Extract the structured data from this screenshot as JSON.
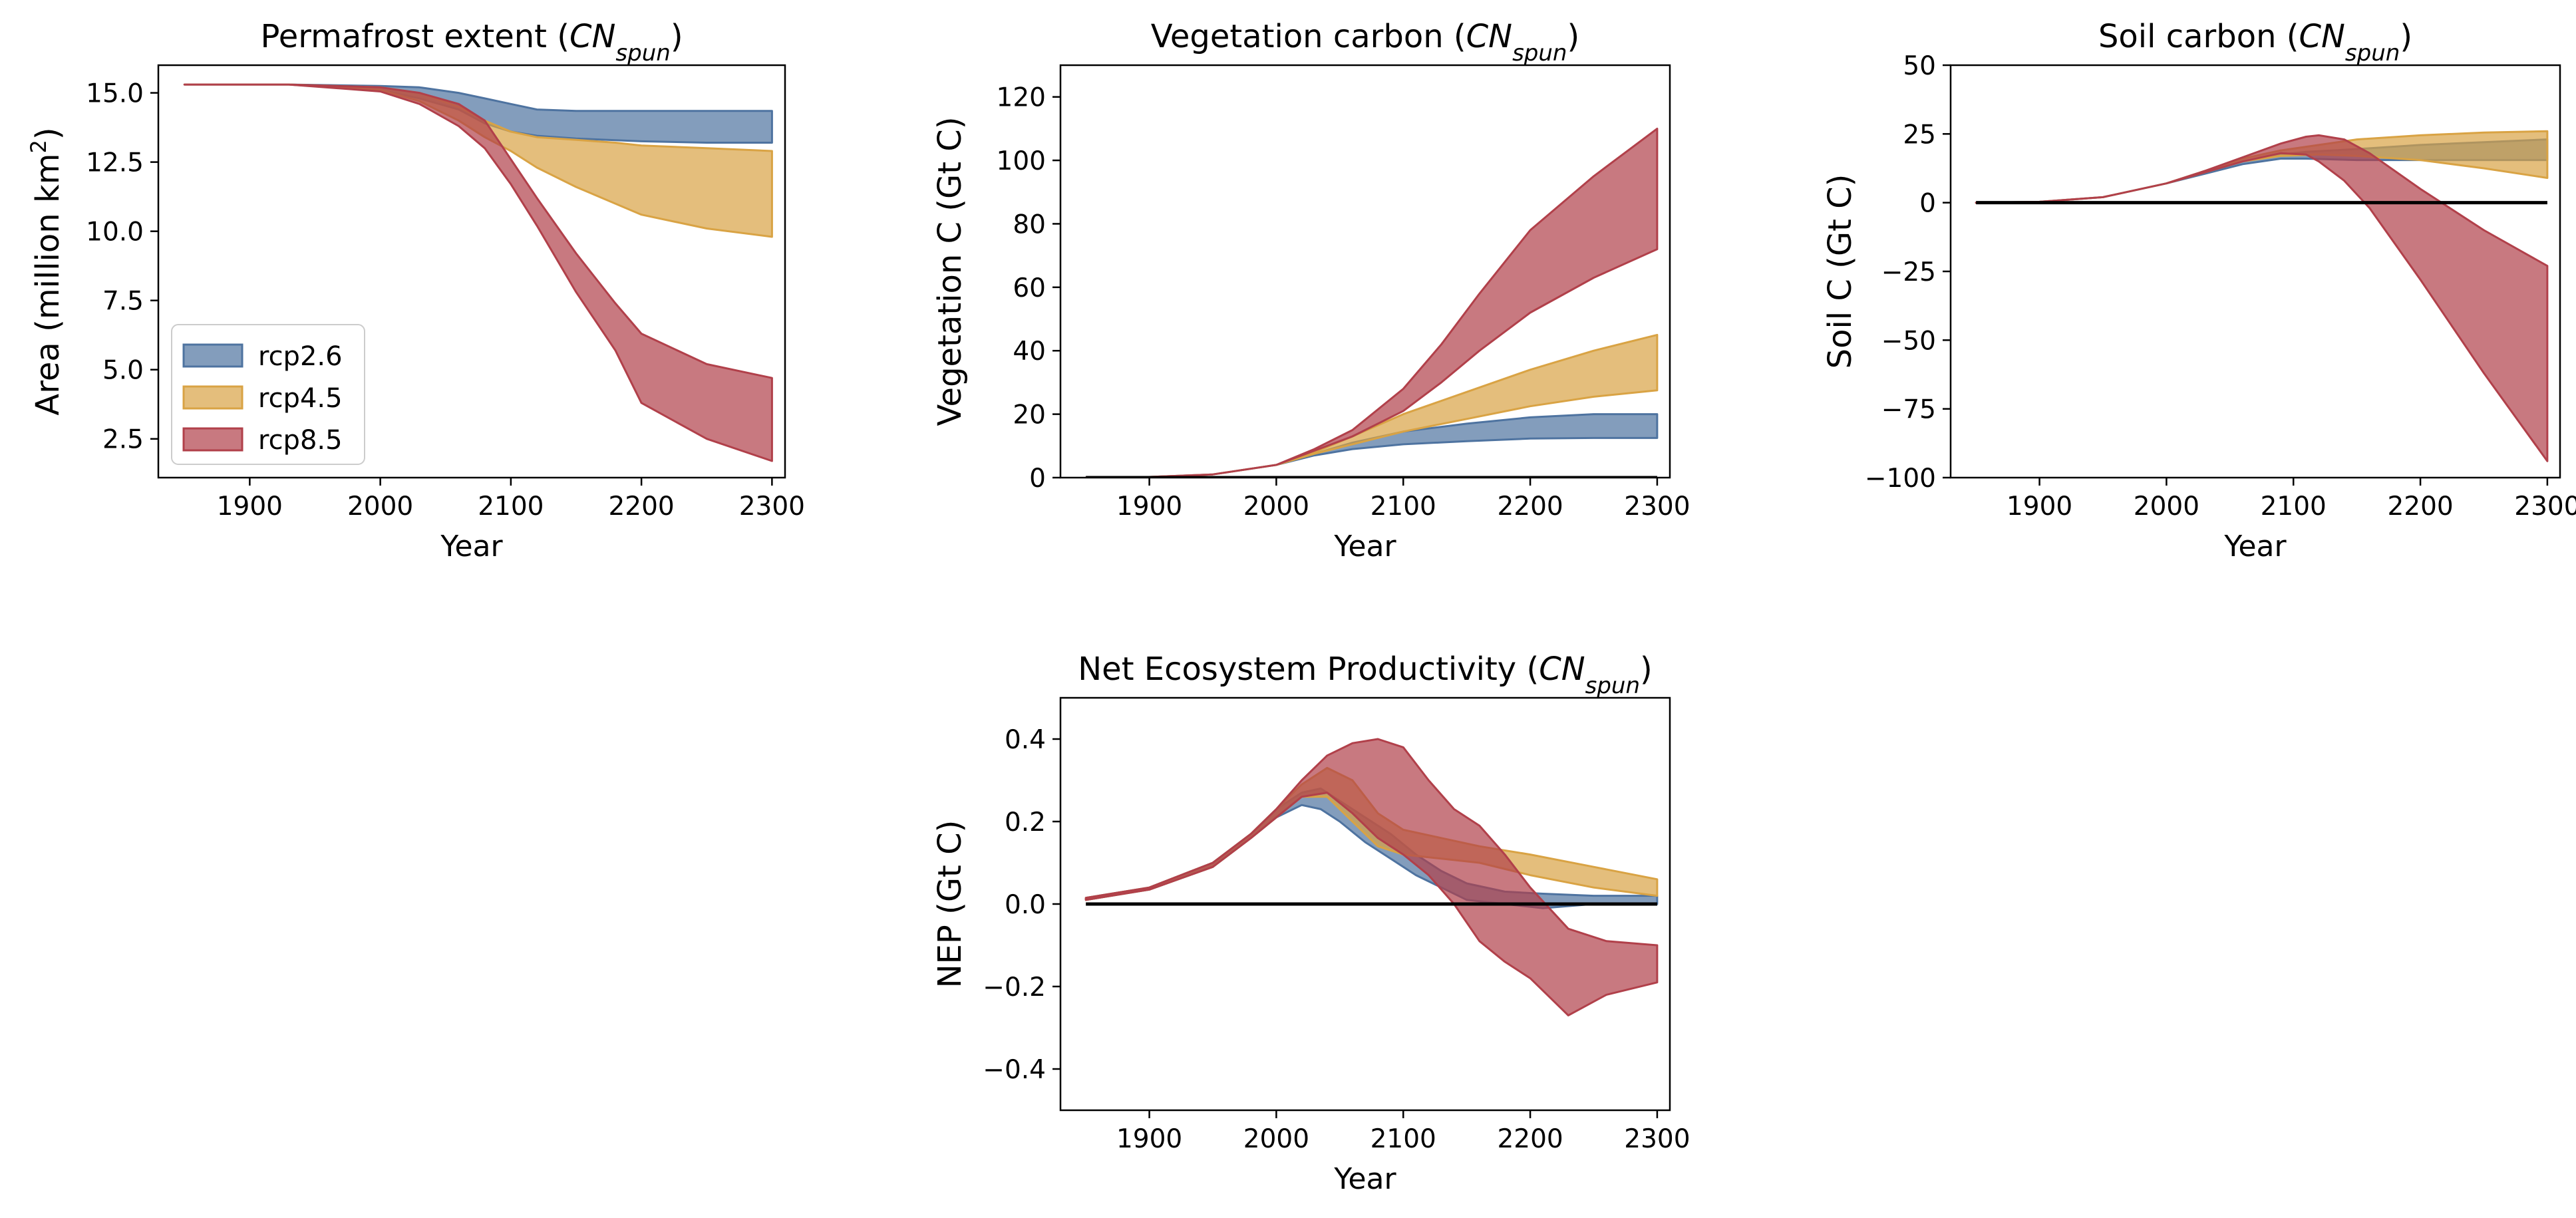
{
  "colors": {
    "rcp2.6": "#4e73a0",
    "rcp4.5": "#d9a344",
    "rcp8.5": "#b1404a",
    "zero_line": "#000000"
  },
  "legend": [
    "rcp2.6",
    "rcp4.5",
    "rcp8.5"
  ],
  "chart_data": [
    {
      "id": "permafrost",
      "type": "area",
      "title_main": "Permafrost extent (",
      "title_sym": "CN",
      "title_sub": "spun",
      "title_close": ")",
      "xlabel": "Year",
      "ylabel_main": "Area (million km",
      "ylabel_sup": "2",
      "ylabel_close": ")",
      "xlim": [
        1830,
        2310
      ],
      "ylim": [
        1.1,
        16.0
      ],
      "xticks": [
        1900,
        2000,
        2100,
        2200,
        2300
      ],
      "yticks": [
        2.5,
        5.0,
        7.5,
        10.0,
        12.5,
        15.0
      ],
      "ytick_labels": [
        "2.5",
        "5.0",
        "7.5",
        "10.0",
        "12.5",
        "15.0"
      ],
      "legend_location": "lower left",
      "series": [
        {
          "name": "rcp2.6",
          "x": [
            1850,
            1930,
            2000,
            2030,
            2060,
            2080,
            2100,
            2120,
            2150,
            2200,
            2250,
            2300
          ],
          "upper": [
            15.3,
            15.3,
            15.25,
            15.2,
            15.0,
            14.8,
            14.6,
            14.4,
            14.35,
            14.35,
            14.35,
            14.35
          ],
          "lower": [
            15.3,
            15.3,
            15.1,
            14.8,
            14.4,
            13.9,
            13.6,
            13.45,
            13.35,
            13.25,
            13.2,
            13.2
          ]
        },
        {
          "name": "rcp4.5",
          "x": [
            1850,
            1930,
            2000,
            2030,
            2060,
            2080,
            2100,
            2120,
            2150,
            2180,
            2200,
            2250,
            2300
          ],
          "upper": [
            15.3,
            15.3,
            15.2,
            15.0,
            14.5,
            14.0,
            13.6,
            13.4,
            13.3,
            13.2,
            13.1,
            13.0,
            12.9
          ],
          "lower": [
            15.3,
            15.3,
            15.1,
            14.7,
            14.0,
            13.4,
            12.9,
            12.3,
            11.6,
            11.0,
            10.6,
            10.1,
            9.8
          ]
        },
        {
          "name": "rcp8.5",
          "x": [
            1850,
            1930,
            2000,
            2030,
            2060,
            2080,
            2100,
            2120,
            2150,
            2180,
            2200,
            2250,
            2300
          ],
          "upper": [
            15.3,
            15.3,
            15.2,
            15.0,
            14.6,
            14.0,
            12.6,
            11.2,
            9.2,
            7.4,
            6.3,
            5.2,
            4.7
          ],
          "lower": [
            15.3,
            15.3,
            15.05,
            14.6,
            13.8,
            13.0,
            11.7,
            10.2,
            7.8,
            5.7,
            3.8,
            2.5,
            1.7
          ]
        }
      ]
    },
    {
      "id": "vegetation",
      "type": "area",
      "title_main": "Vegetation carbon (",
      "title_sym": "CN",
      "title_sub": "spun",
      "title_close": ")",
      "xlabel": "Year",
      "ylabel_main": "Vegetation C (Gt C)",
      "xlim": [
        1830,
        2310
      ],
      "ylim": [
        0,
        130
      ],
      "xticks": [
        1900,
        2000,
        2100,
        2200,
        2300
      ],
      "yticks": [
        0,
        20,
        40,
        60,
        80,
        100,
        120
      ],
      "ytick_labels": [
        "0",
        "20",
        "40",
        "60",
        "80",
        "100",
        "120"
      ],
      "zero_line": [
        1850,
        2300
      ],
      "series": [
        {
          "name": "rcp2.6",
          "x": [
            1850,
            1900,
            1950,
            2000,
            2030,
            2060,
            2100,
            2150,
            2200,
            2250,
            2300
          ],
          "upper": [
            0,
            0.2,
            1.0,
            4.0,
            7.5,
            11.0,
            14.5,
            17.0,
            19.0,
            20.0,
            20.0
          ],
          "lower": [
            0,
            0.2,
            1.0,
            4.0,
            7.0,
            9.0,
            10.5,
            11.5,
            12.3,
            12.5,
            12.5
          ]
        },
        {
          "name": "rcp4.5",
          "x": [
            1850,
            1900,
            1950,
            2000,
            2030,
            2060,
            2100,
            2150,
            2200,
            2250,
            2300
          ],
          "upper": [
            0,
            0.2,
            1.0,
            4.0,
            8.0,
            13.0,
            20.0,
            27.0,
            34.0,
            40.0,
            45.0
          ],
          "lower": [
            0,
            0.2,
            1.0,
            4.0,
            7.5,
            10.5,
            14.5,
            18.5,
            22.5,
            25.5,
            27.5
          ]
        },
        {
          "name": "rcp8.5",
          "x": [
            1850,
            1900,
            1950,
            2000,
            2030,
            2060,
            2100,
            2130,
            2160,
            2200,
            2250,
            2300
          ],
          "upper": [
            0,
            0.2,
            1.0,
            4.0,
            9.0,
            15.0,
            28.0,
            42.0,
            58.0,
            78.0,
            95.0,
            110.0
          ],
          "lower": [
            0,
            0.2,
            1.0,
            4.0,
            8.5,
            13.0,
            21.0,
            30.0,
            40.0,
            52.0,
            63.0,
            72.0
          ]
        }
      ]
    },
    {
      "id": "soil",
      "type": "area",
      "title_main": "Soil carbon (",
      "title_sym": "CN",
      "title_sub": "spun",
      "title_close": ")",
      "xlabel": "Year",
      "ylabel_main": "Soil C (Gt C)",
      "xlim": [
        1830,
        2310
      ],
      "ylim": [
        -100,
        50
      ],
      "xticks": [
        1900,
        2000,
        2100,
        2200,
        2300
      ],
      "yticks": [
        -100,
        -75,
        -50,
        -25,
        0,
        25,
        50
      ],
      "ytick_labels": [
        "−100",
        "−75",
        "−50",
        "−25",
        "0",
        "25",
        "50"
      ],
      "zero_line": [
        1850,
        2300
      ],
      "series": [
        {
          "name": "rcp2.6",
          "x": [
            1850,
            1900,
            1950,
            2000,
            2030,
            2060,
            2090,
            2110,
            2150,
            2200,
            2250,
            2300
          ],
          "upper": [
            0,
            0.3,
            2.0,
            7.0,
            11.0,
            15.0,
            17.5,
            18.5,
            19.5,
            21.0,
            22.0,
            23.0
          ],
          "lower": [
            0,
            0.3,
            2.0,
            7.0,
            10.5,
            14.0,
            16.0,
            16.0,
            15.5,
            15.5,
            15.5,
            15.5
          ]
        },
        {
          "name": "rcp4.5",
          "x": [
            1850,
            1900,
            1950,
            2000,
            2030,
            2060,
            2090,
            2120,
            2150,
            2200,
            2250,
            2300
          ],
          "upper": [
            0,
            0.3,
            2.0,
            7.0,
            11.5,
            16.0,
            19.0,
            21.0,
            23.0,
            24.5,
            25.5,
            26.0
          ],
          "lower": [
            0,
            0.3,
            2.0,
            7.0,
            11.0,
            15.0,
            17.0,
            17.5,
            17.0,
            15.5,
            12.5,
            9.0
          ]
        },
        {
          "name": "rcp8.5",
          "x": [
            1850,
            1900,
            1950,
            2000,
            2030,
            2060,
            2090,
            2110,
            2120,
            2140,
            2160,
            2200,
            2250,
            2300
          ],
          "upper": [
            0,
            0.3,
            2.0,
            7.0,
            11.5,
            16.5,
            21.5,
            24.0,
            24.5,
            23.0,
            18.0,
            5.0,
            -10.0,
            -23.0
          ],
          "lower": [
            0,
            0.3,
            2.0,
            7.0,
            11.0,
            15.0,
            18.0,
            17.5,
            15.0,
            8.0,
            -2.0,
            -28.0,
            -62.0,
            -94.0
          ]
        }
      ]
    },
    {
      "id": "nep",
      "type": "area",
      "title_main": "Net Ecosystem Productivity (",
      "title_sym": "CN",
      "title_sub": "spun",
      "title_close": ")",
      "xlabel": "Year",
      "ylabel_main": "NEP (Gt C)",
      "xlim": [
        1830,
        2310
      ],
      "ylim": [
        -0.5,
        0.5
      ],
      "xticks": [
        1900,
        2000,
        2100,
        2200,
        2300
      ],
      "yticks": [
        -0.4,
        -0.2,
        0.0,
        0.2,
        0.4
      ],
      "ytick_labels": [
        "−0.4",
        "−0.2",
        "0.0",
        "0.2",
        "0.4"
      ],
      "zero_line": [
        1850,
        2300
      ],
      "series": [
        {
          "name": "rcp2.6",
          "x": [
            1850,
            1900,
            1950,
            1980,
            2000,
            2020,
            2035,
            2050,
            2070,
            2090,
            2110,
            2130,
            2150,
            2180,
            2210,
            2250,
            2300
          ],
          "upper": [
            0.015,
            0.04,
            0.1,
            0.17,
            0.23,
            0.27,
            0.28,
            0.25,
            0.21,
            0.17,
            0.12,
            0.08,
            0.05,
            0.03,
            0.025,
            0.02,
            0.02
          ],
          "lower": [
            0.01,
            0.035,
            0.09,
            0.16,
            0.21,
            0.24,
            0.23,
            0.2,
            0.15,
            0.11,
            0.07,
            0.04,
            0.01,
            0.0,
            -0.01,
            0.0,
            0.0
          ]
        },
        {
          "name": "rcp4.5",
          "x": [
            1850,
            1900,
            1950,
            1980,
            2000,
            2020,
            2040,
            2060,
            2080,
            2100,
            2130,
            2160,
            2200,
            2250,
            2300
          ],
          "upper": [
            0.015,
            0.04,
            0.1,
            0.17,
            0.23,
            0.29,
            0.33,
            0.3,
            0.22,
            0.18,
            0.16,
            0.14,
            0.12,
            0.09,
            0.06
          ],
          "lower": [
            0.01,
            0.035,
            0.09,
            0.16,
            0.21,
            0.26,
            0.26,
            0.2,
            0.14,
            0.12,
            0.11,
            0.1,
            0.07,
            0.04,
            0.02
          ]
        },
        {
          "name": "rcp8.5",
          "x": [
            1850,
            1900,
            1950,
            1980,
            2000,
            2020,
            2040,
            2060,
            2080,
            2100,
            2120,
            2140,
            2160,
            2180,
            2200,
            2230,
            2260,
            2300
          ],
          "upper": [
            0.015,
            0.04,
            0.1,
            0.17,
            0.23,
            0.3,
            0.36,
            0.39,
            0.4,
            0.38,
            0.3,
            0.23,
            0.19,
            0.12,
            0.04,
            -0.06,
            -0.09,
            -0.1
          ],
          "lower": [
            0.01,
            0.035,
            0.09,
            0.16,
            0.21,
            0.26,
            0.27,
            0.22,
            0.16,
            0.12,
            0.07,
            0.0,
            -0.09,
            -0.14,
            -0.18,
            -0.27,
            -0.22,
            -0.19
          ]
        }
      ]
    }
  ]
}
